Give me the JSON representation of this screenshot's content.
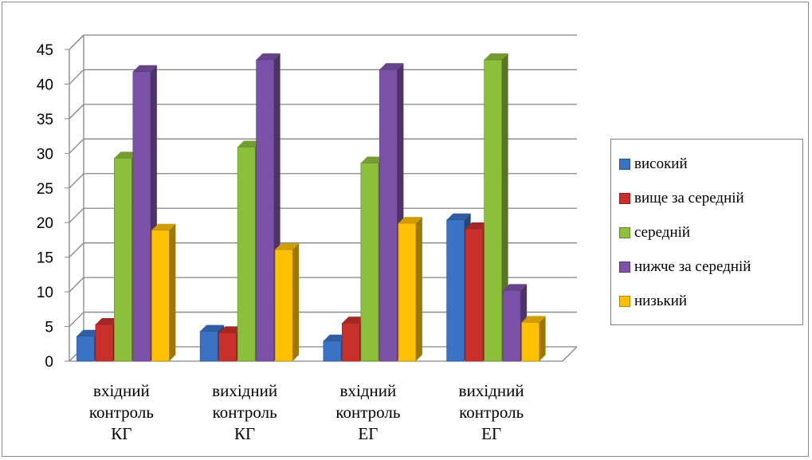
{
  "chart_data": {
    "type": "bar",
    "title": "",
    "xlabel": "",
    "ylabel": "",
    "ylim": [
      0,
      45
    ],
    "yticks": [
      0,
      5,
      10,
      15,
      20,
      25,
      30,
      35,
      40,
      45
    ],
    "grid": true,
    "legend_position": "right",
    "categories": [
      [
        "вхідний",
        "контроль",
        "КГ"
      ],
      [
        "вихідний",
        "контроль",
        "КГ"
      ],
      [
        "вхідний",
        "контроль",
        "ЕГ"
      ],
      [
        "вихідний",
        "контроль",
        "ЕГ"
      ]
    ],
    "series": [
      {
        "name": "високий",
        "color": "#3a73c5",
        "values": [
          3.6,
          4.3,
          2.9,
          20.4
        ]
      },
      {
        "name": "вище за середній",
        "color": "#c9302c",
        "values": [
          5.3,
          4.1,
          5.5,
          19.1
        ]
      },
      {
        "name": "середній",
        "color": "#8cbf3a",
        "values": [
          29.3,
          30.9,
          28.6,
          43.5
        ]
      },
      {
        "name": "нижче за середній",
        "color": "#7c52a8",
        "values": [
          41.8,
          43.5,
          42.1,
          10.2
        ]
      },
      {
        "name": "низький",
        "color": "#ffc000",
        "values": [
          18.9,
          16.1,
          19.9,
          5.6
        ]
      }
    ]
  }
}
